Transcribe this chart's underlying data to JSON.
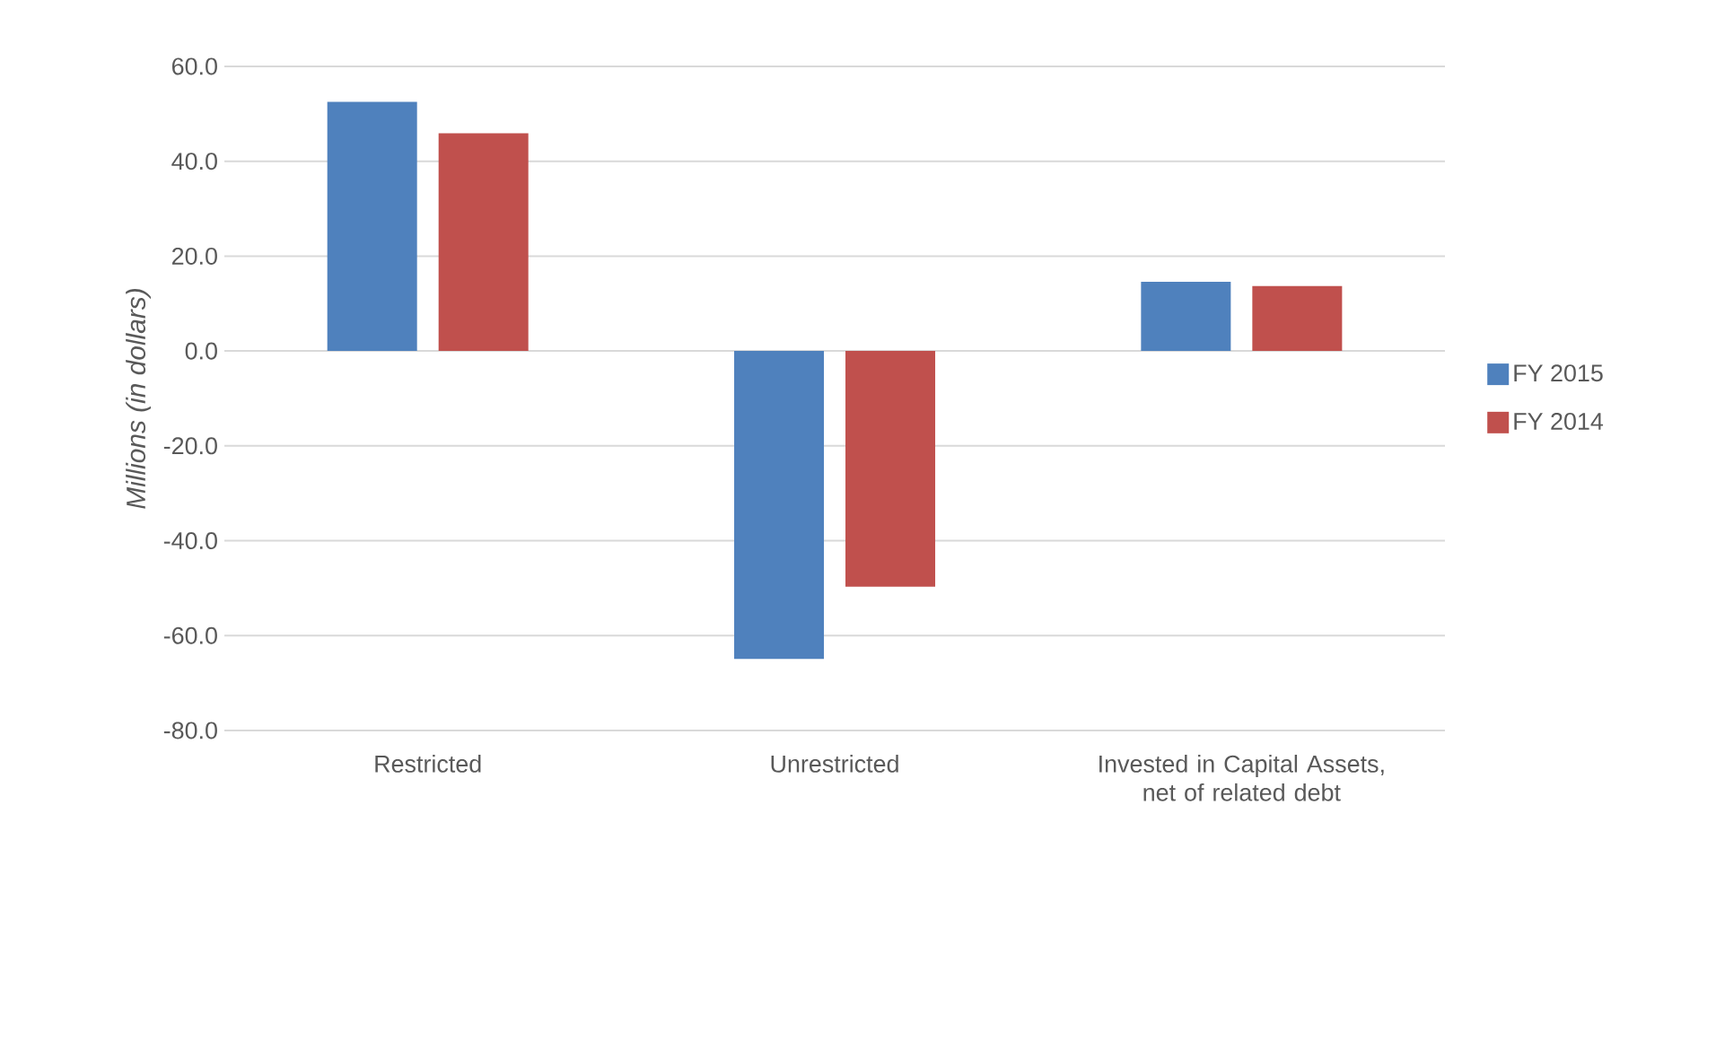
{
  "chart_data": {
    "type": "bar",
    "ylabel": "Millions (in dollars)",
    "categories": [
      "Restricted",
      "Unrestricted",
      "Invested in Capital Assets, net of related debt"
    ],
    "series": [
      {
        "name": "FY 2015",
        "color": "#4f81bd",
        "values": [
          52.5,
          -64.9,
          14.6
        ]
      },
      {
        "name": "FY 2014",
        "color": "#c0504d",
        "values": [
          45.9,
          -49.7,
          13.7
        ]
      }
    ],
    "ylim": [
      -80,
      60
    ],
    "yticks": [
      {
        "value": -80,
        "label": "-80.0"
      },
      {
        "value": -60,
        "label": "-60.0"
      },
      {
        "value": -40,
        "label": "-40.0"
      },
      {
        "value": -20,
        "label": "-20.0"
      },
      {
        "value": 0,
        "label": "0.0"
      },
      {
        "value": 20,
        "label": "20.0"
      },
      {
        "value": 40,
        "label": "40.0"
      },
      {
        "value": 60,
        "label": "60.0"
      }
    ],
    "grid": "y",
    "legend": "right"
  }
}
